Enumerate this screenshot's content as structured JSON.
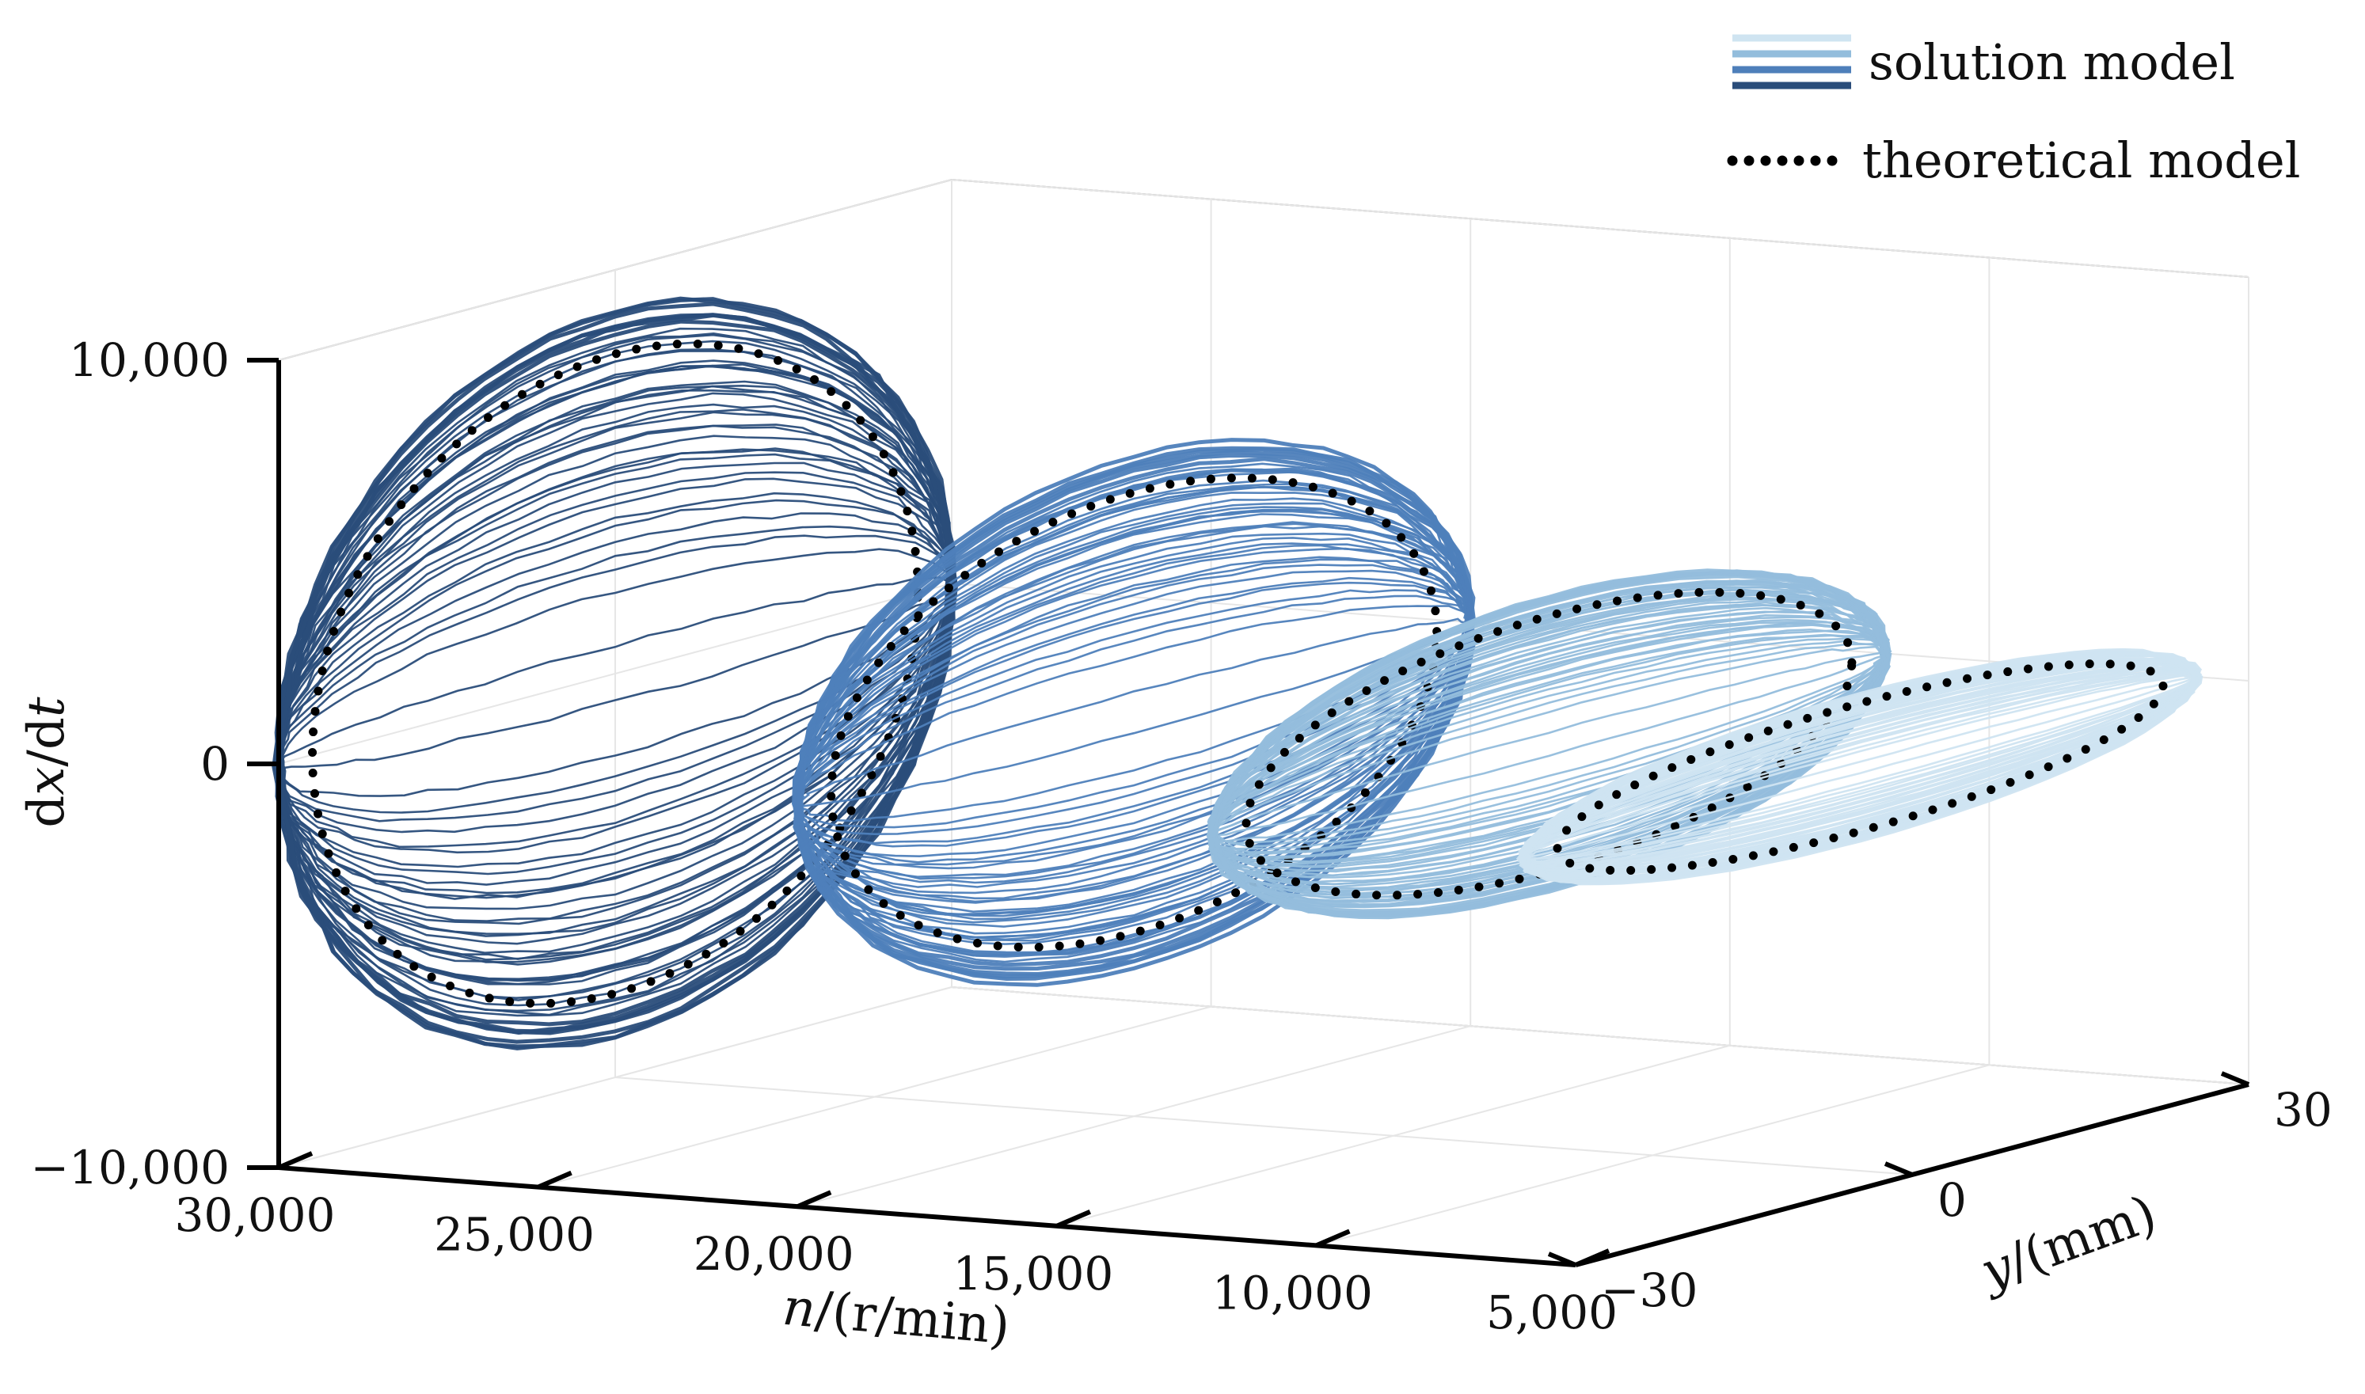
{
  "chart_data": {
    "type": "line",
    "projection": "3d-perspective",
    "axes": {
      "n": {
        "label_italic": "n",
        "label_rest": "/(r/min)",
        "range": [
          5000,
          30000
        ],
        "ticks": [
          30000,
          25000,
          20000,
          15000,
          10000,
          5000
        ],
        "tick_labels": [
          "30,000",
          "25,000",
          "20,000",
          "15,000",
          "10,000",
          "5,000"
        ]
      },
      "y": {
        "label_italic": "y",
        "label_rest": "/(mm)",
        "range": [
          -30,
          30
        ],
        "ticks": [
          -30,
          0,
          30
        ],
        "tick_labels": [
          "−30",
          "0",
          "30"
        ]
      },
      "z": {
        "label_pre": "d",
        "label_italic_1": "x",
        "label_mid": "/d",
        "label_italic_2": "t",
        "range": [
          -10000,
          10000
        ],
        "ticks": [
          -10000,
          0,
          10000
        ],
        "tick_labels": [
          "−10,000",
          "0",
          "10,000"
        ]
      }
    },
    "grid": true,
    "legend": {
      "position": "top-right",
      "entries": [
        {
          "label": "solution model",
          "colors": [
            "#cfe4f1",
            "#93bddc",
            "#4e7fba",
            "#2a4d7a"
          ],
          "style": "solid"
        },
        {
          "label": "theoretical model",
          "color": "#000000",
          "style": "dotted"
        }
      ]
    },
    "series": [
      {
        "speed": 30000,
        "color": "#2a4d7a",
        "y_amplitude": 30,
        "v_amplitude": 9000
      },
      {
        "speed": 20000,
        "color": "#4e7fba",
        "y_amplitude": 30,
        "v_amplitude": 6200
      },
      {
        "speed": 12000,
        "color": "#93bddc",
        "y_amplitude": 30,
        "v_amplitude": 3600
      },
      {
        "speed": 6000,
        "color": "#cfe4f1",
        "y_amplitude": 30,
        "v_amplitude": 1800
      }
    ]
  }
}
